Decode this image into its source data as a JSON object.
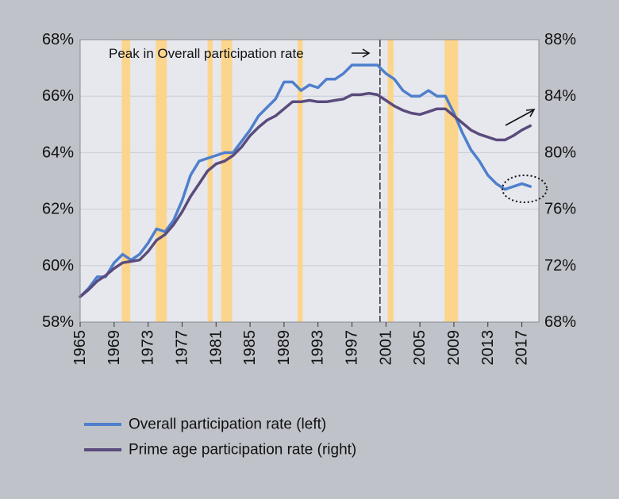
{
  "chart_data": {
    "type": "line",
    "title": "",
    "xlabel": "",
    "ylabel_left": "",
    "ylabel_right": "",
    "xlim": [
      1965,
      2019
    ],
    "x_ticks": [
      1965,
      1969,
      1973,
      1977,
      1981,
      1985,
      1989,
      1993,
      1997,
      2001,
      2005,
      2009,
      2013,
      2017
    ],
    "x_tick_labels": [
      "1965",
      "1969",
      "1973",
      "1977",
      "1981",
      "1985",
      "1989",
      "1993",
      "1997",
      "2001",
      "2005",
      "2009",
      "2013",
      "2017"
    ],
    "ylim_left": [
      58,
      68
    ],
    "y_ticks_left": [
      58,
      60,
      62,
      64,
      66,
      68
    ],
    "y_tick_labels_left": [
      "58%",
      "60%",
      "62%",
      "64%",
      "66%",
      "68%"
    ],
    "ylim_right": [
      68,
      88
    ],
    "y_ticks_right": [
      68,
      72,
      76,
      80,
      84,
      88
    ],
    "y_tick_labels_right": [
      "68%",
      "72%",
      "76%",
      "80%",
      "84%",
      "88%"
    ],
    "grid": true,
    "recessions": [
      [
        1969.9,
        1970.9
      ],
      [
        1973.9,
        1975.2
      ],
      [
        1980.0,
        1980.6
      ],
      [
        1981.6,
        1982.9
      ],
      [
        1990.6,
        1991.2
      ],
      [
        2001.2,
        2001.9
      ],
      [
        2007.9,
        2009.5
      ]
    ],
    "peak_line_x": 2000.3,
    "peak_label": "Peak in Overall participation rate",
    "series": [
      {
        "name": "Overall participation rate (left)",
        "axis": "left",
        "color": "#4f7fcc",
        "x": [
          1965,
          1966,
          1967,
          1968,
          1969,
          1970,
          1971,
          1972,
          1973,
          1974,
          1975,
          1976,
          1977,
          1978,
          1979,
          1980,
          1981,
          1982,
          1983,
          1984,
          1985,
          1986,
          1987,
          1988,
          1989,
          1990,
          1991,
          1992,
          1993,
          1994,
          1995,
          1996,
          1997,
          1998,
          1999,
          2000,
          2001,
          2002,
          2003,
          2004,
          2005,
          2006,
          2007,
          2008,
          2009,
          2010,
          2011,
          2012,
          2013,
          2014,
          2015,
          2016,
          2017,
          2018
        ],
        "values": [
          58.9,
          59.2,
          59.6,
          59.6,
          60.1,
          60.4,
          60.2,
          60.4,
          60.8,
          61.3,
          61.2,
          61.6,
          62.3,
          63.2,
          63.7,
          63.8,
          63.9,
          64.0,
          64.0,
          64.4,
          64.8,
          65.3,
          65.6,
          65.9,
          66.5,
          66.5,
          66.2,
          66.4,
          66.3,
          66.6,
          66.6,
          66.8,
          67.1,
          67.1,
          67.1,
          67.1,
          66.8,
          66.6,
          66.2,
          66.0,
          66.0,
          66.2,
          66.0,
          66.0,
          65.4,
          64.7,
          64.1,
          63.7,
          63.2,
          62.9,
          62.7,
          62.8,
          62.9,
          62.8
        ]
      },
      {
        "name": "Prime age participation rate (right)",
        "axis": "right",
        "color": "#5b4b7c",
        "x": [
          1965,
          1966,
          1967,
          1968,
          1969,
          1970,
          1971,
          1972,
          1973,
          1974,
          1975,
          1976,
          1977,
          1978,
          1979,
          1980,
          1981,
          1982,
          1983,
          1984,
          1985,
          1986,
          1987,
          1988,
          1989,
          1990,
          1991,
          1992,
          1993,
          1994,
          1995,
          1996,
          1997,
          1998,
          1999,
          2000,
          2001,
          2002,
          2003,
          2004,
          2005,
          2006,
          2007,
          2008,
          2009,
          2010,
          2011,
          2012,
          2013,
          2014,
          2015,
          2016,
          2017,
          2018
        ],
        "values": [
          69.8,
          70.3,
          70.9,
          71.3,
          71.8,
          72.2,
          72.3,
          72.4,
          73.0,
          73.8,
          74.2,
          74.9,
          75.8,
          76.9,
          77.8,
          78.7,
          79.2,
          79.4,
          79.8,
          80.4,
          81.2,
          81.8,
          82.3,
          82.6,
          83.1,
          83.6,
          83.6,
          83.7,
          83.6,
          83.6,
          83.7,
          83.8,
          84.1,
          84.1,
          84.2,
          84.1,
          83.7,
          83.3,
          83.0,
          82.8,
          82.7,
          82.9,
          83.1,
          83.1,
          82.6,
          82.1,
          81.6,
          81.3,
          81.1,
          80.9,
          80.9,
          81.2,
          81.6,
          81.9
        ]
      }
    ]
  }
}
